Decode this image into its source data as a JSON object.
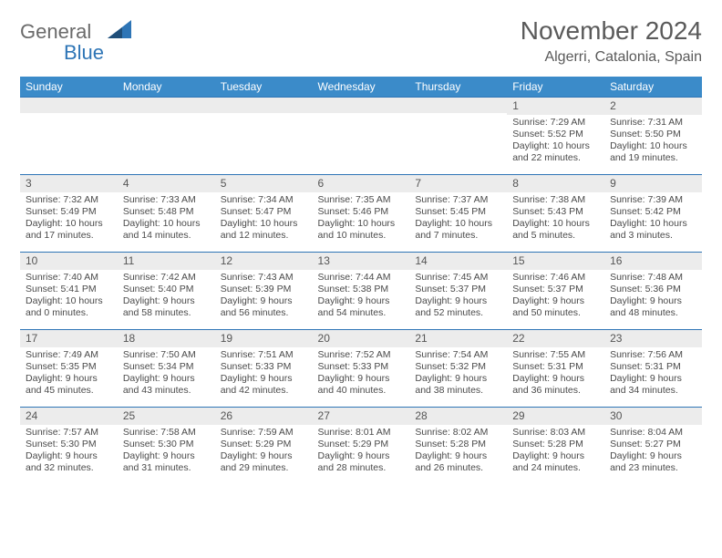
{
  "colors": {
    "header_bg": "#3b8bc9",
    "band_bg": "#ececec",
    "band_border": "#2e75b6",
    "logo_gray": "#6a6a6a",
    "logo_blue": "#2e75b6",
    "text": "#4a4a4a"
  },
  "logo": {
    "part1": "General",
    "part2": "Blue"
  },
  "title": "November 2024",
  "location": "Algerri, Catalonia, Spain",
  "weekdays": [
    "Sunday",
    "Monday",
    "Tuesday",
    "Wednesday",
    "Thursday",
    "Friday",
    "Saturday"
  ],
  "cells": [
    {
      "n": "",
      "l1": "",
      "l2": "",
      "l3": "",
      "l4": ""
    },
    {
      "n": "",
      "l1": "",
      "l2": "",
      "l3": "",
      "l4": ""
    },
    {
      "n": "",
      "l1": "",
      "l2": "",
      "l3": "",
      "l4": ""
    },
    {
      "n": "",
      "l1": "",
      "l2": "",
      "l3": "",
      "l4": ""
    },
    {
      "n": "",
      "l1": "",
      "l2": "",
      "l3": "",
      "l4": ""
    },
    {
      "n": "1",
      "l1": "Sunrise: 7:29 AM",
      "l2": "Sunset: 5:52 PM",
      "l3": "Daylight: 10 hours",
      "l4": "and 22 minutes."
    },
    {
      "n": "2",
      "l1": "Sunrise: 7:31 AM",
      "l2": "Sunset: 5:50 PM",
      "l3": "Daylight: 10 hours",
      "l4": "and 19 minutes."
    },
    {
      "n": "3",
      "l1": "Sunrise: 7:32 AM",
      "l2": "Sunset: 5:49 PM",
      "l3": "Daylight: 10 hours",
      "l4": "and 17 minutes."
    },
    {
      "n": "4",
      "l1": "Sunrise: 7:33 AM",
      "l2": "Sunset: 5:48 PM",
      "l3": "Daylight: 10 hours",
      "l4": "and 14 minutes."
    },
    {
      "n": "5",
      "l1": "Sunrise: 7:34 AM",
      "l2": "Sunset: 5:47 PM",
      "l3": "Daylight: 10 hours",
      "l4": "and 12 minutes."
    },
    {
      "n": "6",
      "l1": "Sunrise: 7:35 AM",
      "l2": "Sunset: 5:46 PM",
      "l3": "Daylight: 10 hours",
      "l4": "and 10 minutes."
    },
    {
      "n": "7",
      "l1": "Sunrise: 7:37 AM",
      "l2": "Sunset: 5:45 PM",
      "l3": "Daylight: 10 hours",
      "l4": "and 7 minutes."
    },
    {
      "n": "8",
      "l1": "Sunrise: 7:38 AM",
      "l2": "Sunset: 5:43 PM",
      "l3": "Daylight: 10 hours",
      "l4": "and 5 minutes."
    },
    {
      "n": "9",
      "l1": "Sunrise: 7:39 AM",
      "l2": "Sunset: 5:42 PM",
      "l3": "Daylight: 10 hours",
      "l4": "and 3 minutes."
    },
    {
      "n": "10",
      "l1": "Sunrise: 7:40 AM",
      "l2": "Sunset: 5:41 PM",
      "l3": "Daylight: 10 hours",
      "l4": "and 0 minutes."
    },
    {
      "n": "11",
      "l1": "Sunrise: 7:42 AM",
      "l2": "Sunset: 5:40 PM",
      "l3": "Daylight: 9 hours",
      "l4": "and 58 minutes."
    },
    {
      "n": "12",
      "l1": "Sunrise: 7:43 AM",
      "l2": "Sunset: 5:39 PM",
      "l3": "Daylight: 9 hours",
      "l4": "and 56 minutes."
    },
    {
      "n": "13",
      "l1": "Sunrise: 7:44 AM",
      "l2": "Sunset: 5:38 PM",
      "l3": "Daylight: 9 hours",
      "l4": "and 54 minutes."
    },
    {
      "n": "14",
      "l1": "Sunrise: 7:45 AM",
      "l2": "Sunset: 5:37 PM",
      "l3": "Daylight: 9 hours",
      "l4": "and 52 minutes."
    },
    {
      "n": "15",
      "l1": "Sunrise: 7:46 AM",
      "l2": "Sunset: 5:37 PM",
      "l3": "Daylight: 9 hours",
      "l4": "and 50 minutes."
    },
    {
      "n": "16",
      "l1": "Sunrise: 7:48 AM",
      "l2": "Sunset: 5:36 PM",
      "l3": "Daylight: 9 hours",
      "l4": "and 48 minutes."
    },
    {
      "n": "17",
      "l1": "Sunrise: 7:49 AM",
      "l2": "Sunset: 5:35 PM",
      "l3": "Daylight: 9 hours",
      "l4": "and 45 minutes."
    },
    {
      "n": "18",
      "l1": "Sunrise: 7:50 AM",
      "l2": "Sunset: 5:34 PM",
      "l3": "Daylight: 9 hours",
      "l4": "and 43 minutes."
    },
    {
      "n": "19",
      "l1": "Sunrise: 7:51 AM",
      "l2": "Sunset: 5:33 PM",
      "l3": "Daylight: 9 hours",
      "l4": "and 42 minutes."
    },
    {
      "n": "20",
      "l1": "Sunrise: 7:52 AM",
      "l2": "Sunset: 5:33 PM",
      "l3": "Daylight: 9 hours",
      "l4": "and 40 minutes."
    },
    {
      "n": "21",
      "l1": "Sunrise: 7:54 AM",
      "l2": "Sunset: 5:32 PM",
      "l3": "Daylight: 9 hours",
      "l4": "and 38 minutes."
    },
    {
      "n": "22",
      "l1": "Sunrise: 7:55 AM",
      "l2": "Sunset: 5:31 PM",
      "l3": "Daylight: 9 hours",
      "l4": "and 36 minutes."
    },
    {
      "n": "23",
      "l1": "Sunrise: 7:56 AM",
      "l2": "Sunset: 5:31 PM",
      "l3": "Daylight: 9 hours",
      "l4": "and 34 minutes."
    },
    {
      "n": "24",
      "l1": "Sunrise: 7:57 AM",
      "l2": "Sunset: 5:30 PM",
      "l3": "Daylight: 9 hours",
      "l4": "and 32 minutes."
    },
    {
      "n": "25",
      "l1": "Sunrise: 7:58 AM",
      "l2": "Sunset: 5:30 PM",
      "l3": "Daylight: 9 hours",
      "l4": "and 31 minutes."
    },
    {
      "n": "26",
      "l1": "Sunrise: 7:59 AM",
      "l2": "Sunset: 5:29 PM",
      "l3": "Daylight: 9 hours",
      "l4": "and 29 minutes."
    },
    {
      "n": "27",
      "l1": "Sunrise: 8:01 AM",
      "l2": "Sunset: 5:29 PM",
      "l3": "Daylight: 9 hours",
      "l4": "and 28 minutes."
    },
    {
      "n": "28",
      "l1": "Sunrise: 8:02 AM",
      "l2": "Sunset: 5:28 PM",
      "l3": "Daylight: 9 hours",
      "l4": "and 26 minutes."
    },
    {
      "n": "29",
      "l1": "Sunrise: 8:03 AM",
      "l2": "Sunset: 5:28 PM",
      "l3": "Daylight: 9 hours",
      "l4": "and 24 minutes."
    },
    {
      "n": "30",
      "l1": "Sunrise: 8:04 AM",
      "l2": "Sunset: 5:27 PM",
      "l3": "Daylight: 9 hours",
      "l4": "and 23 minutes."
    }
  ]
}
